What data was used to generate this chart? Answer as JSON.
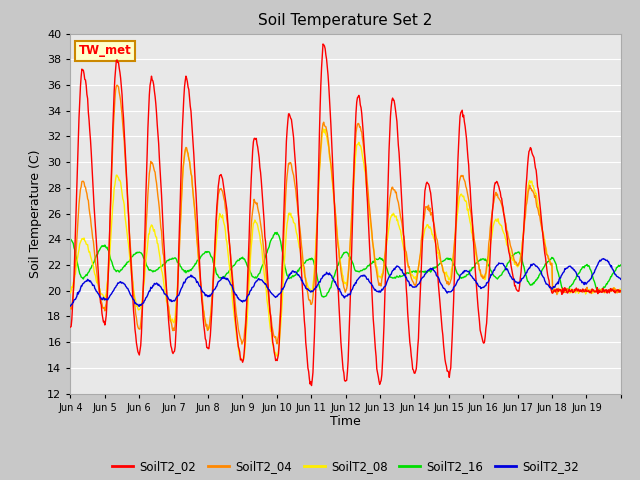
{
  "title": "Soil Temperature Set 2",
  "xlabel": "Time",
  "ylabel": "Soil Temperature (C)",
  "ylim": [
    12,
    40
  ],
  "yticks": [
    12,
    14,
    16,
    18,
    20,
    22,
    24,
    26,
    28,
    30,
    32,
    34,
    36,
    38,
    40
  ],
  "fig_bg": "#c8c8c8",
  "plot_bg": "#e8e8e8",
  "grid_color": "#ffffff",
  "line_colors": {
    "SoilT2_02": "#ff0000",
    "SoilT2_04": "#ff8800",
    "SoilT2_08": "#ffee00",
    "SoilT2_16": "#00dd00",
    "SoilT2_32": "#0000dd"
  },
  "annotation_text": "TW_met",
  "annotation_bg": "#ffffcc",
  "annotation_border": "#cc8800",
  "x_tick_labels": [
    "Jun 4",
    "Jun 5",
    "Jun 6",
    "Jun 7",
    "Jun 8",
    "Jun 9",
    "Jun 10",
    "Jun 11",
    "Jun 12",
    "Jun 13",
    "Jun 14",
    "Jun 15",
    "Jun 16",
    "Jun 17",
    "Jun 18",
    "Jun 19"
  ],
  "legend_labels": [
    "SoilT2_02",
    "SoilT2_04",
    "SoilT2_08",
    "SoilT2_16",
    "SoilT2_32"
  ],
  "n_days": 16,
  "pts_per_day": 48,
  "T02_peaks": [
    37.2,
    17.0,
    38.0,
    17.5,
    36.5,
    15.0,
    36.5,
    15.0,
    29.0,
    15.5,
    32.0,
    14.5,
    33.8,
    14.5,
    39.2,
    12.8,
    35.2,
    13.0,
    35.0,
    12.8,
    28.5,
    13.5,
    34.0,
    13.5,
    28.5,
    16.0,
    31.0,
    20.0
  ],
  "T04_peaks": [
    28.5,
    18.5,
    36.0,
    18.5,
    30.0,
    17.0,
    31.0,
    17.0,
    28.0,
    17.0,
    27.0,
    16.0,
    30.0,
    16.0,
    33.0,
    19.0,
    33.0,
    20.0,
    28.0,
    20.5,
    26.5,
    20.5,
    29.0,
    20.5,
    27.5,
    21.0,
    28.0,
    22.0
  ],
  "T08_peaks": [
    24.0,
    20.0,
    29.0,
    19.5,
    25.0,
    18.5,
    31.0,
    17.5,
    26.0,
    17.0,
    25.5,
    14.5,
    26.0,
    15.0,
    32.5,
    20.0,
    31.5,
    20.5,
    26.0,
    21.0,
    25.0,
    21.0,
    27.5,
    21.0,
    25.5,
    21.0,
    28.5,
    22.0
  ],
  "T16_base": 21.0,
  "T32_base": 20.0
}
